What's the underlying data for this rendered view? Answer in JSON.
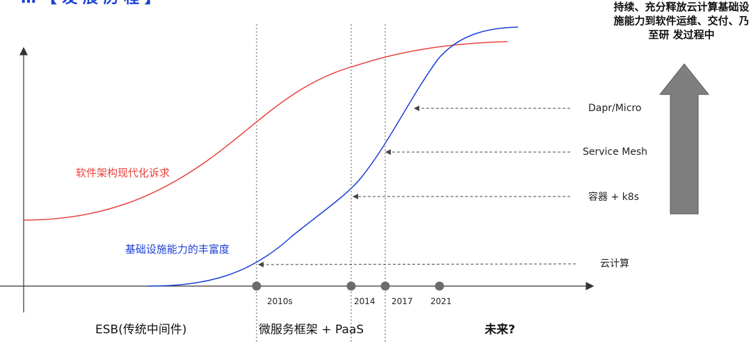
{
  "colors": {
    "demand_curve": "#e8413c",
    "capability_curve": "#1a3fd6",
    "title_fragment": "#1a3fd6",
    "arrow_fill": "#7f7f7f",
    "axis": "#333333"
  },
  "title_fragment": "… 【 发 展 历 程 】",
  "curves": {
    "demand_label": "软件架构现代化诉求",
    "capability_label": "基础设施能力的丰富度"
  },
  "milestones": [
    {
      "year": "2010s"
    },
    {
      "year": "2014"
    },
    {
      "year": "2017"
    },
    {
      "year": "2021"
    }
  ],
  "eras": {
    "esb": "ESB(传统中间件)",
    "microservices": "微服务框架 + PaaS",
    "future": "未来?"
  },
  "annotations": {
    "dapr": "Dapr/Micro",
    "service_mesh": "Service Mesh",
    "containers": "容器 + k8s",
    "cloud": "云计算"
  },
  "side_note": "持续、充分释放云计算基础设施能力到软件运维、交付、乃至研 发过程中",
  "side_note_icon": "up-arrow-icon"
}
